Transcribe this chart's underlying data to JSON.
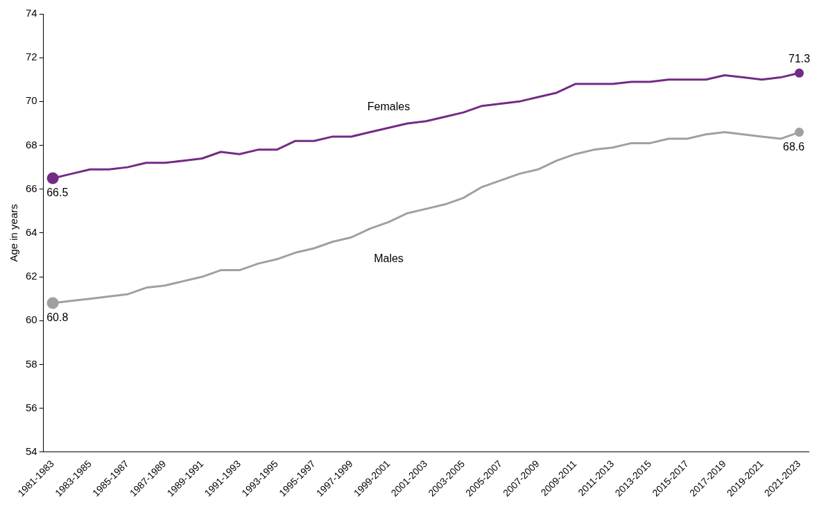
{
  "chart_data": {
    "type": "line",
    "ylabel": "Age in years",
    "categories": [
      "1981-1983",
      null,
      "1983-1985",
      null,
      "1985-1987",
      null,
      "1987-1989",
      null,
      "1989-1991",
      null,
      "1991-1993",
      null,
      "1993-1995",
      null,
      "1995-1997",
      null,
      "1997-1999",
      null,
      "1999-2001",
      null,
      "2001-2003",
      null,
      "2003-2005",
      null,
      "2005-2007",
      null,
      "2007-2009",
      null,
      "2009-2011",
      null,
      "2011-2013",
      null,
      "2013-2015",
      null,
      "2015-2017",
      null,
      "2017-2019",
      null,
      "2019-2021",
      null,
      "2021-2023"
    ],
    "series": [
      {
        "name": "Females",
        "color": "#732b85",
        "values": [
          66.5,
          66.7,
          66.9,
          66.9,
          67.0,
          67.2,
          67.2,
          67.3,
          67.4,
          67.7,
          67.6,
          67.8,
          67.8,
          68.2,
          68.2,
          68.4,
          68.4,
          68.6,
          68.8,
          69.0,
          69.1,
          69.3,
          69.5,
          69.8,
          69.9,
          70.0,
          70.2,
          70.4,
          70.8,
          70.8,
          70.8,
          70.9,
          70.9,
          71.0,
          71.0,
          71.0,
          71.2,
          71.1,
          71.0,
          71.1,
          71.3
        ],
        "value_labels": [
          "66.5",
          null,
          null,
          null,
          null,
          null,
          null,
          null,
          null,
          null,
          null,
          null,
          null,
          null,
          null,
          null,
          null,
          null,
          null,
          null,
          null,
          null,
          null,
          null,
          null,
          null,
          null,
          null,
          null,
          null,
          null,
          null,
          null,
          null,
          null,
          null,
          null,
          null,
          null,
          null,
          "71.3"
        ]
      },
      {
        "name": "Males",
        "color": "#a0a0a0",
        "values": [
          60.8,
          60.9,
          61.0,
          61.1,
          61.2,
          61.5,
          61.6,
          61.8,
          62.0,
          62.3,
          62.3,
          62.6,
          62.8,
          63.1,
          63.3,
          63.6,
          63.8,
          64.2,
          64.5,
          64.9,
          65.1,
          65.3,
          65.6,
          66.1,
          66.4,
          66.7,
          66.9,
          67.3,
          67.6,
          67.8,
          67.9,
          68.1,
          68.1,
          68.3,
          68.3,
          68.5,
          68.6,
          68.5,
          68.4,
          68.3,
          68.6
        ],
        "value_labels": [
          "60.8",
          null,
          null,
          null,
          null,
          null,
          null,
          null,
          null,
          null,
          null,
          null,
          null,
          null,
          null,
          null,
          null,
          null,
          null,
          null,
          null,
          null,
          null,
          null,
          null,
          null,
          null,
          null,
          null,
          null,
          null,
          null,
          null,
          null,
          null,
          null,
          null,
          null,
          null,
          null,
          "68.6"
        ]
      }
    ],
    "ylim": [
      54,
      74
    ],
    "yticks": [
      54,
      56,
      58,
      60,
      62,
      64,
      66,
      68,
      70,
      72,
      74
    ],
    "grid": false,
    "legend": false
  }
}
